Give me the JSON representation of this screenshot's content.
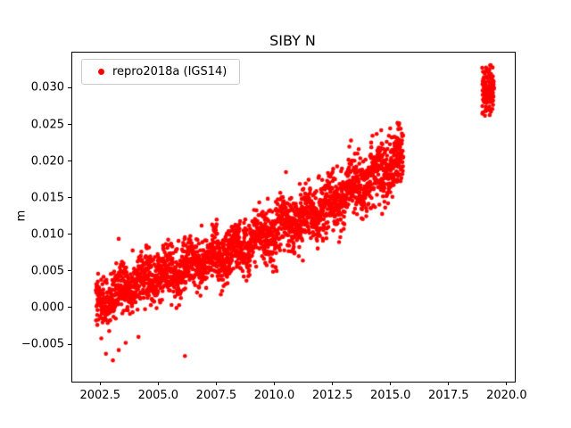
{
  "chart_data": {
    "type": "scatter",
    "title": "SIBY N",
    "xlabel": "",
    "ylabel": "m",
    "legend_label": "repro2018a (IGS14)",
    "legend_position": "upper left",
    "marker_color": "#ff0000",
    "grid": false,
    "xlim": [
      2001.3,
      2020.35
    ],
    "ylim": [
      -0.0101,
      0.0348
    ],
    "xticks": [
      2002.5,
      2005.0,
      2007.5,
      2010.0,
      2012.5,
      2015.0,
      2017.5,
      2020.0
    ],
    "yticks": [
      -0.005,
      0.0,
      0.005,
      0.01,
      0.015,
      0.02,
      0.025,
      0.03
    ],
    "x_tick_decimals": 1,
    "y_tick_decimals": 3,
    "series_description": "Daily GPS north-component displacement time series: dense linear upward trend ~0.0005 m at 2002.4 to ~0.0205 m at 2015.55, data gap 2015.6-2018.9, then cluster 2018.95-2019.45 around 0.026-0.033 m",
    "segments": [
      {
        "name": "main",
        "x_start": 2002.32,
        "x_end": 2015.55,
        "n": 2600,
        "seed": 42,
        "x_jitter": 0.004,
        "trend_points": [
          [
            2002.32,
            0.0003
          ],
          [
            2004.0,
            0.0035
          ],
          [
            2006.0,
            0.0052
          ],
          [
            2008.0,
            0.0075
          ],
          [
            2010.0,
            0.0105
          ],
          [
            2012.0,
            0.0135
          ],
          [
            2014.0,
            0.0175
          ],
          [
            2015.55,
            0.0205
          ]
        ],
        "seasonal_amp": 0.0009,
        "seasonal_phase": 0.1,
        "sd_start": 0.0016,
        "sd_end": 0.002,
        "clamp": [
          -0.006,
          0.0258
        ]
      },
      {
        "name": "recent",
        "x_start": 2018.95,
        "x_end": 2019.45,
        "n": 140,
        "seed": 7,
        "x_jitter": 0.004,
        "trend_points": [
          [
            2018.95,
            0.029
          ],
          [
            2019.45,
            0.03
          ]
        ],
        "seasonal_amp": 0.0,
        "seasonal_phase": 0.0,
        "sd_start": 0.0016,
        "sd_end": 0.0016,
        "clamp": [
          0.0262,
          0.0331
        ]
      }
    ],
    "outlier_points": [
      [
        2002.55,
        -0.0042
      ],
      [
        2002.75,
        -0.0063
      ],
      [
        2003.05,
        -0.0072
      ],
      [
        2003.3,
        -0.0058
      ],
      [
        2003.6,
        -0.0048
      ],
      [
        2004.15,
        -0.004
      ],
      [
        2006.15,
        -0.0066
      ],
      [
        2003.9,
        0.0078
      ],
      [
        2004.6,
        0.0082
      ],
      [
        2010.5,
        0.0185
      ],
      [
        2013.3,
        0.0228
      ],
      [
        2014.6,
        0.0242
      ],
      [
        2015.3,
        0.0252
      ]
    ],
    "marker_radius_px": 2.3
  }
}
